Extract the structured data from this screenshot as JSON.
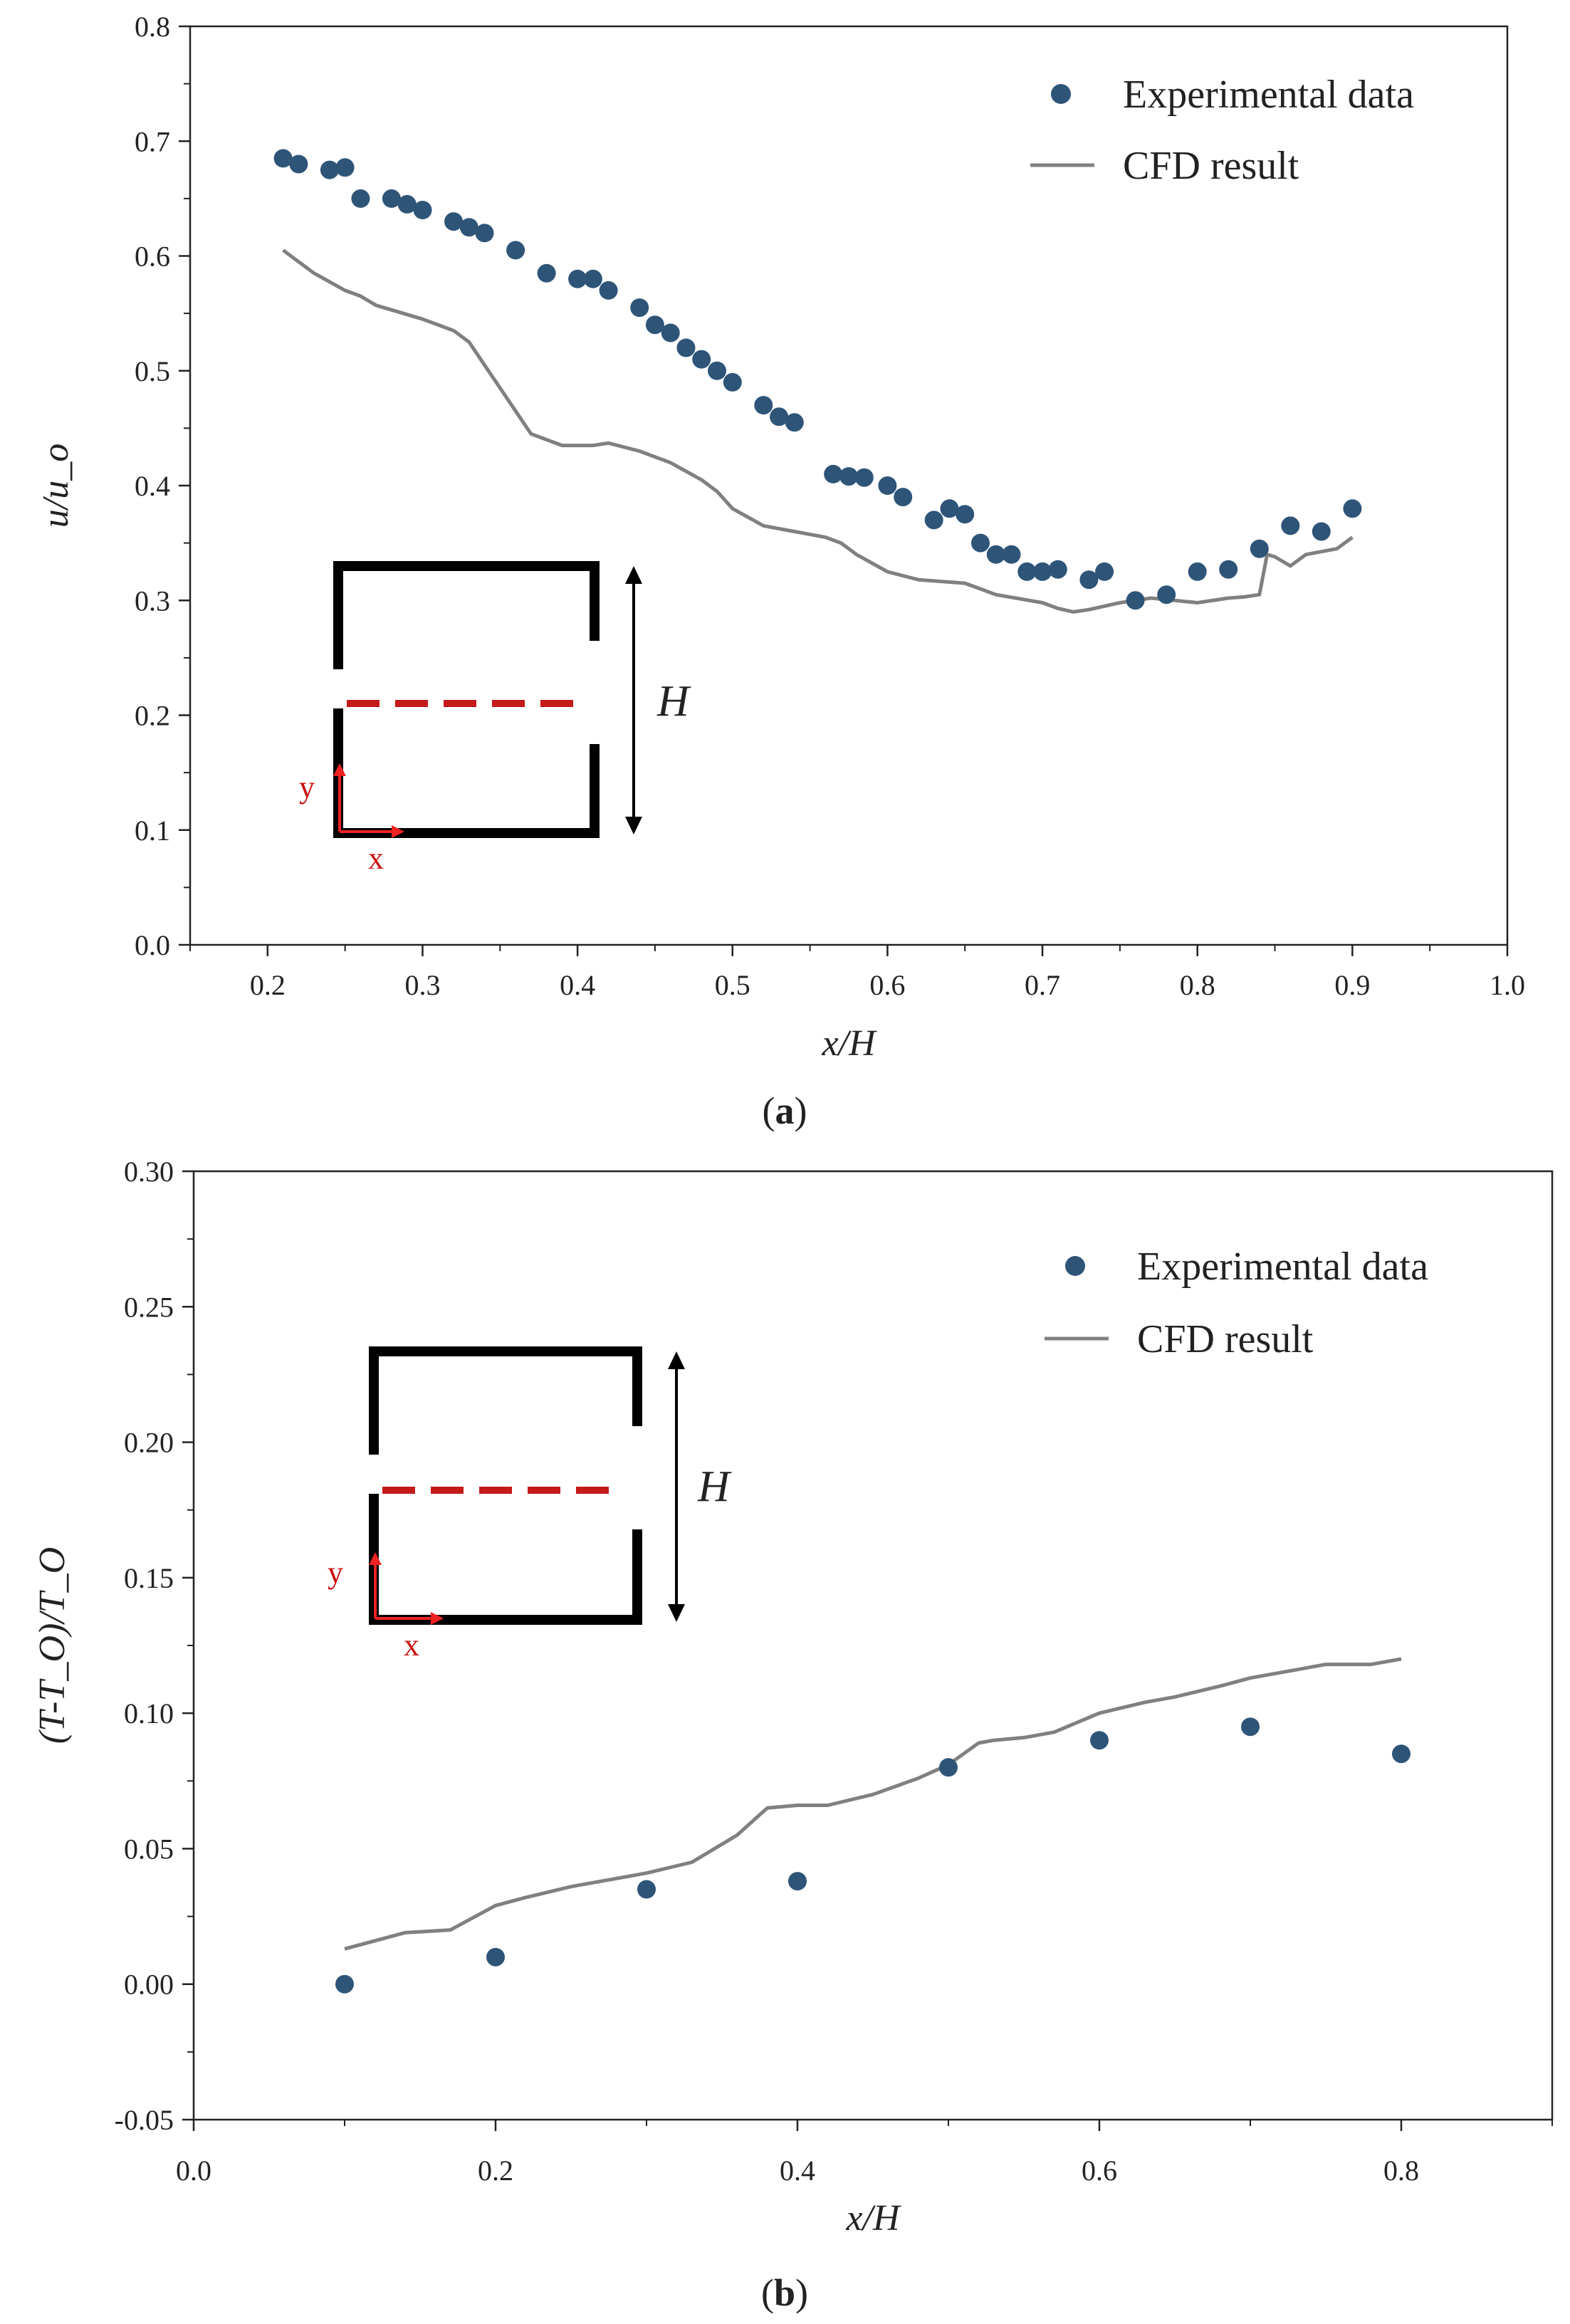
{
  "colors": {
    "experimental": "#2e5478",
    "cfd": "#808080",
    "axis": "#222222",
    "inset_dash": "#c41a1a",
    "inset_axes": "#ee2222"
  },
  "chart_data": [
    {
      "type": "scatter",
      "panel": "a",
      "caption": "a",
      "xlabel": "x/H",
      "ylabel": "u/u_o",
      "xlim": [
        0.15,
        1.0
      ],
      "ylim": [
        0.0,
        0.8
      ],
      "xticks": [
        "0.2",
        "0.3",
        "0.4",
        "0.5",
        "0.6",
        "0.7",
        "0.8",
        "0.9",
        "1.0"
      ],
      "yticks": [
        "0.0",
        "0.1",
        "0.2",
        "0.3",
        "0.4",
        "0.5",
        "0.6",
        "0.7",
        "0.8"
      ],
      "legend": {
        "position": "top-right",
        "experimental_label": "Experimental data",
        "cfd_label": "CFD result"
      },
      "inset": {
        "height_label": "H",
        "x_axis_label": "x",
        "y_axis_label": "y"
      },
      "series": [
        {
          "name": "Experimental data",
          "kind": "markers",
          "x": [
            0.21,
            0.22,
            0.24,
            0.25,
            0.26,
            0.28,
            0.29,
            0.3,
            0.32,
            0.33,
            0.34,
            0.36,
            0.38,
            0.4,
            0.41,
            0.42,
            0.44,
            0.45,
            0.46,
            0.47,
            0.48,
            0.49,
            0.5,
            0.52,
            0.53,
            0.54,
            0.565,
            0.575,
            0.585,
            0.6,
            0.61,
            0.63,
            0.64,
            0.65,
            0.66,
            0.67,
            0.68,
            0.69,
            0.7,
            0.71,
            0.73,
            0.74,
            0.76,
            0.78,
            0.8,
            0.82,
            0.84,
            0.86,
            0.88,
            0.9
          ],
          "y": [
            0.685,
            0.68,
            0.675,
            0.677,
            0.65,
            0.65,
            0.645,
            0.64,
            0.63,
            0.625,
            0.62,
            0.605,
            0.585,
            0.58,
            0.58,
            0.57,
            0.555,
            0.54,
            0.533,
            0.52,
            0.51,
            0.5,
            0.49,
            0.47,
            0.46,
            0.455,
            0.41,
            0.408,
            0.407,
            0.4,
            0.39,
            0.37,
            0.38,
            0.375,
            0.35,
            0.34,
            0.34,
            0.325,
            0.325,
            0.327,
            0.318,
            0.325,
            0.3,
            0.305,
            0.325,
            0.327,
            0.345,
            0.365,
            0.36,
            0.38
          ]
        },
        {
          "name": "CFD result",
          "kind": "line",
          "x": [
            0.21,
            0.22,
            0.23,
            0.25,
            0.26,
            0.27,
            0.3,
            0.32,
            0.33,
            0.34,
            0.35,
            0.36,
            0.37,
            0.38,
            0.39,
            0.4,
            0.41,
            0.42,
            0.44,
            0.46,
            0.48,
            0.49,
            0.5,
            0.52,
            0.54,
            0.56,
            0.57,
            0.58,
            0.6,
            0.62,
            0.65,
            0.66,
            0.67,
            0.7,
            0.71,
            0.72,
            0.73,
            0.75,
            0.77,
            0.8,
            0.82,
            0.83,
            0.84,
            0.845,
            0.85,
            0.86,
            0.87,
            0.89,
            0.9
          ],
          "y": [
            0.605,
            0.595,
            0.585,
            0.57,
            0.565,
            0.557,
            0.545,
            0.535,
            0.525,
            0.505,
            0.485,
            0.465,
            0.445,
            0.44,
            0.435,
            0.435,
            0.435,
            0.437,
            0.43,
            0.42,
            0.405,
            0.395,
            0.38,
            0.365,
            0.36,
            0.355,
            0.35,
            0.34,
            0.325,
            0.318,
            0.315,
            0.31,
            0.305,
            0.298,
            0.293,
            0.29,
            0.292,
            0.298,
            0.302,
            0.298,
            0.302,
            0.303,
            0.305,
            0.34,
            0.338,
            0.33,
            0.34,
            0.345,
            0.355
          ]
        }
      ]
    },
    {
      "type": "scatter",
      "panel": "b",
      "caption": "b",
      "xlabel": "x/H",
      "ylabel": "(T-T_O)/T_O",
      "xlim": [
        0.0,
        0.9
      ],
      "ylim": [
        -0.05,
        0.3
      ],
      "xticks": [
        "0.0",
        "0.2",
        "0.4",
        "0.6",
        "0.8"
      ],
      "yticks": [
        "-0.05",
        "0.00",
        "0.05",
        "0.10",
        "0.15",
        "0.20",
        "0.25",
        "0.30"
      ],
      "legend": {
        "position": "top-right",
        "experimental_label": "Experimental data",
        "cfd_label": "CFD result"
      },
      "inset": {
        "height_label": "H",
        "x_axis_label": "x",
        "y_axis_label": "y"
      },
      "series": [
        {
          "name": "Experimental data",
          "kind": "markers",
          "x": [
            0.1,
            0.2,
            0.3,
            0.4,
            0.5,
            0.6,
            0.7,
            0.8
          ],
          "y": [
            0.0,
            0.01,
            0.035,
            0.038,
            0.08,
            0.09,
            0.095,
            0.085
          ]
        },
        {
          "name": "CFD result",
          "kind": "line",
          "x": [
            0.1,
            0.12,
            0.14,
            0.17,
            0.2,
            0.22,
            0.25,
            0.28,
            0.3,
            0.33,
            0.36,
            0.38,
            0.4,
            0.42,
            0.45,
            0.48,
            0.5,
            0.52,
            0.53,
            0.55,
            0.57,
            0.6,
            0.63,
            0.65,
            0.68,
            0.7,
            0.73,
            0.75,
            0.78,
            0.8
          ],
          "y": [
            0.013,
            0.016,
            0.019,
            0.02,
            0.029,
            0.032,
            0.036,
            0.039,
            0.041,
            0.045,
            0.055,
            0.065,
            0.066,
            0.066,
            0.07,
            0.076,
            0.081,
            0.089,
            0.09,
            0.091,
            0.093,
            0.1,
            0.104,
            0.106,
            0.11,
            0.113,
            0.116,
            0.118,
            0.118,
            0.12
          ]
        }
      ]
    }
  ]
}
